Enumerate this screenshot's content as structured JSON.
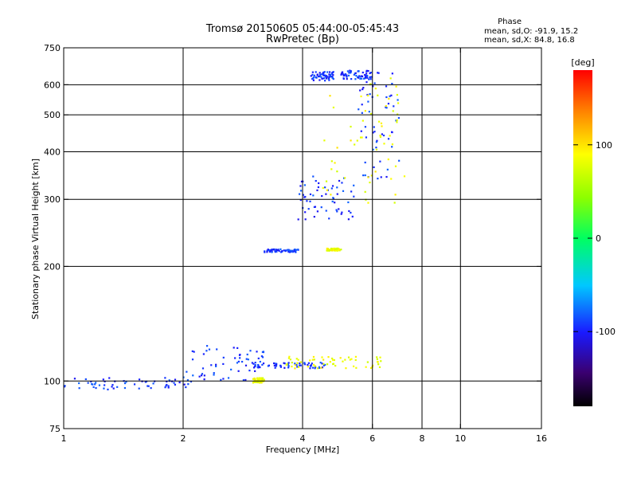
{
  "chart_data": {
    "type": "scatter",
    "title": "Tromsø 20150605 05:44:00-05:45:43",
    "subtitle": "RwPretec (Bp)",
    "xlabel": "Frequency [MHz]",
    "ylabel": "Stationary phase Virtual Height [km]",
    "x_scale": "log",
    "y_scale": "log",
    "xlim": [
      1,
      16
    ],
    "ylim": [
      75,
      750
    ],
    "x_ticks": [
      1,
      2,
      4,
      6,
      8,
      10,
      16
    ],
    "x_tick_labels": [
      "1",
      "2",
      "4",
      "6",
      "8",
      "10",
      "16"
    ],
    "y_ticks": [
      75,
      100,
      200,
      300,
      400,
      500,
      600,
      750
    ],
    "y_tick_labels": [
      "75",
      "100",
      "200",
      "300",
      "400",
      "500",
      "600",
      "750"
    ],
    "grid_x": [
      2,
      4,
      6,
      8,
      10
    ],
    "grid_y": [
      100,
      200,
      300,
      400,
      500,
      600
    ],
    "phase_stats": {
      "heading": "Phase",
      "line_O": "mean, sd,O: -91.9, 15.2",
      "line_X": "mean, sd,X:  84.8, 16.8"
    },
    "colorbar": {
      "label": "[deg]",
      "range": [
        -180,
        180
      ],
      "ticks": [
        100,
        0,
        -100
      ],
      "tick_labels": [
        "100",
        "0",
        "-100"
      ]
    },
    "series": [
      {
        "name": "O-mode (blue, phase ≈ -92°)",
        "phase": -92,
        "segments": [
          {
            "x_range": [
              1.0,
              2.1
            ],
            "y_range": [
              95,
              102
            ]
          },
          {
            "x_range": [
              2.0,
              3.2
            ],
            "y_range": [
              100,
              125
            ]
          },
          {
            "x_range": [
              3.0,
              4.6
            ],
            "y_range": [
              108,
              112
            ]
          },
          {
            "x_range": [
              3.2,
              3.9
            ],
            "y_range": [
              218,
              222
            ]
          },
          {
            "x_range": [
              3.9,
              5.5
            ],
            "y_range": [
              265,
              345
            ]
          },
          {
            "x_range": [
              4.2,
              4.8
            ],
            "y_range": [
              615,
              650
            ]
          },
          {
            "x_range": [
              5.0,
              6.0
            ],
            "y_range": [
              620,
              655
            ]
          },
          {
            "x_range": [
              5.5,
              7.0
            ],
            "y_range": [
              340,
              650
            ]
          }
        ]
      },
      {
        "name": "X-mode (yellow, phase ≈ 85°)",
        "phase": 85,
        "segments": [
          {
            "x_range": [
              3.0,
              3.2
            ],
            "y_range": [
              99,
              102
            ]
          },
          {
            "x_range": [
              3.6,
              6.4
            ],
            "y_range": [
              108,
              116
            ]
          },
          {
            "x_range": [
              4.5,
              7.3
            ],
            "y_range": [
              290,
              630
            ]
          },
          {
            "x_range": [
              4.6,
              5.0
            ],
            "y_range": [
              220,
              223
            ]
          }
        ]
      }
    ]
  }
}
